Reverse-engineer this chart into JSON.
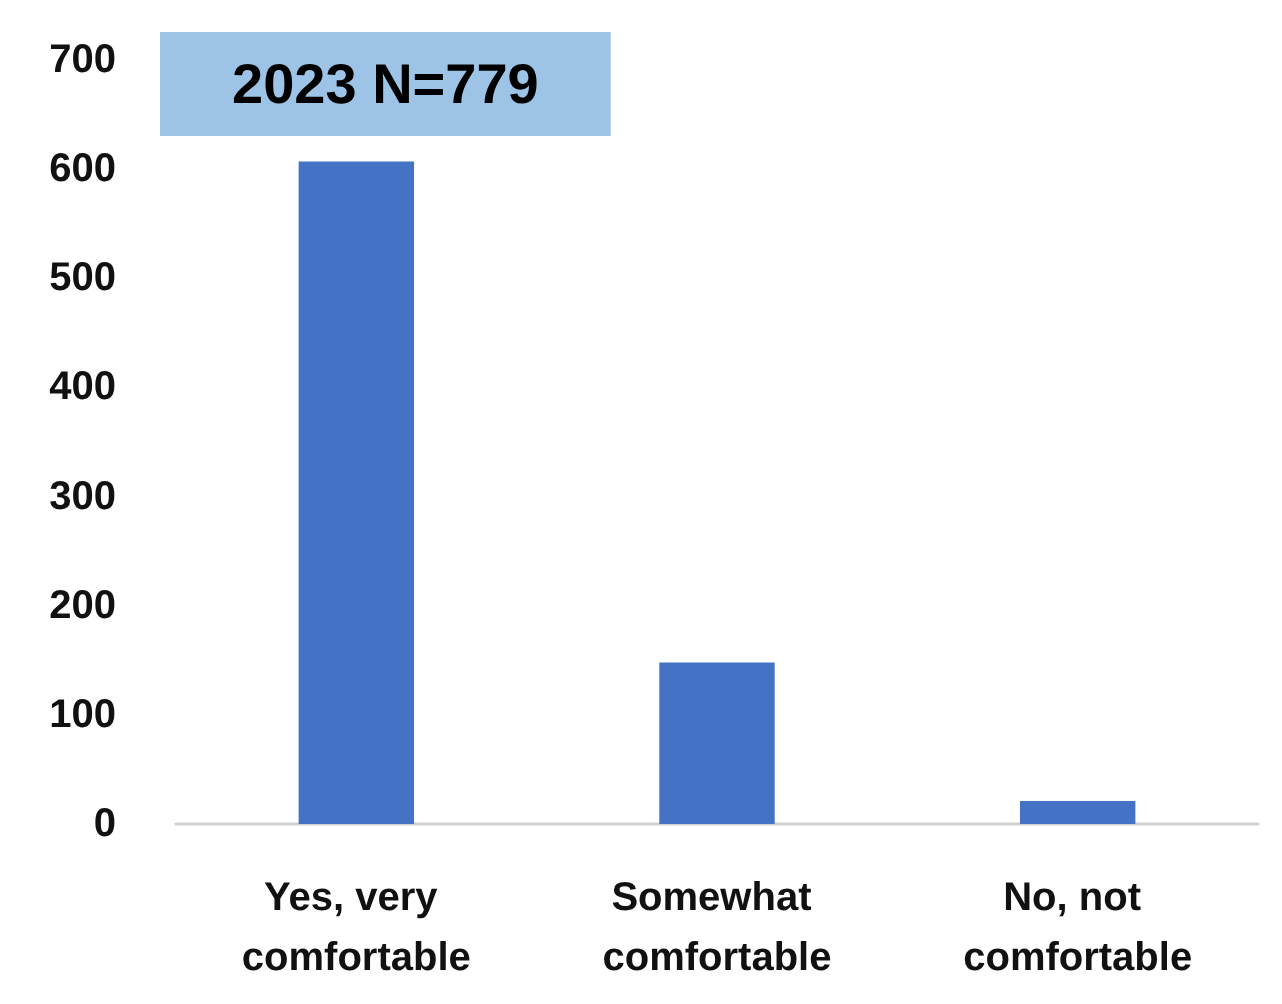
{
  "chart_data": {
    "type": "bar",
    "title": "2023 N=779",
    "categories": [
      "Yes, very comfortable",
      "Somewhat comfortable",
      "No, not comfortable"
    ],
    "values": [
      607,
      148,
      21
    ],
    "color": "#4472c4",
    "ylim": [
      0,
      700
    ],
    "yticks": [
      0,
      100,
      200,
      300,
      400,
      500,
      600,
      700
    ],
    "grid": false
  }
}
